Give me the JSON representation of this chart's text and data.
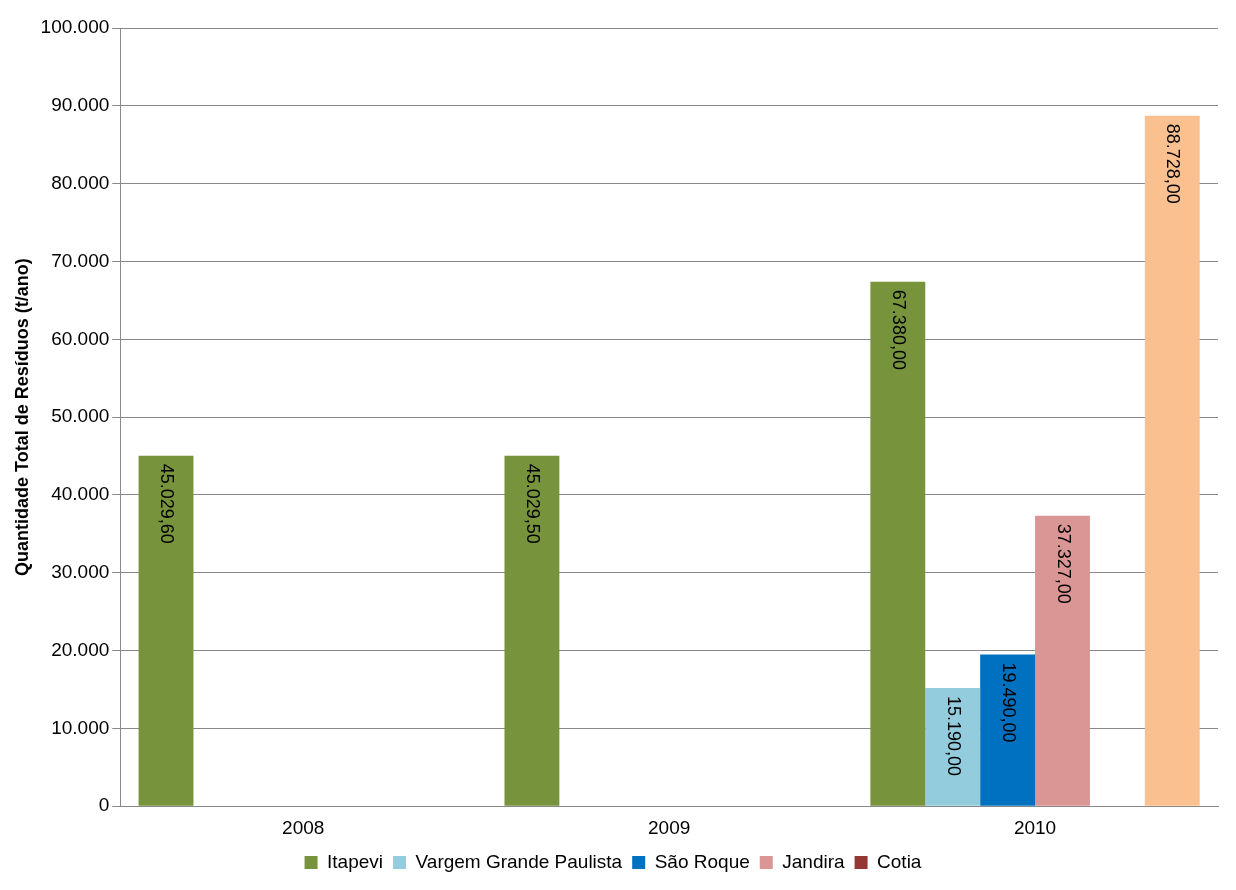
{
  "chart_data": {
    "type": "bar",
    "ylabel": "Quantidade Total de Resíduos (t/ano)",
    "categories": [
      "2008",
      "2009",
      "2010"
    ],
    "series": [
      {
        "name": "Itapevi",
        "color": "#77933c",
        "values": [
          45029.6,
          45029.5,
          67380
        ],
        "value_labels": [
          "45.029,60",
          "45.029,50",
          "67.380,00"
        ]
      },
      {
        "name": "Vargem Grande Paulista",
        "color": "#93cddd",
        "values": [
          null,
          null,
          15190
        ],
        "value_labels": [
          null,
          null,
          "15.190,00"
        ]
      },
      {
        "name": "São Roque",
        "color": "#0070c0",
        "values": [
          null,
          null,
          19490
        ],
        "value_labels": [
          null,
          null,
          "19.490,00"
        ]
      },
      {
        "name": "Jandira",
        "color": "#d99694",
        "values": [
          null,
          null,
          37327
        ],
        "value_labels": [
          null,
          null,
          "37.327,00"
        ]
      },
      {
        "name": "Cotia",
        "color": "#953735",
        "values": [
          null,
          null,
          null
        ]
      },
      {
        "color": "#fac090",
        "values": [
          null,
          null,
          88728
        ],
        "value_labels": [
          null,
          null,
          "88.728,00"
        ]
      }
    ],
    "ylim": [
      0,
      100000
    ],
    "yticks": [
      {
        "value": 0,
        "label": "0"
      },
      {
        "value": 10000,
        "label": "10.000"
      },
      {
        "value": 20000,
        "label": "20.000"
      },
      {
        "value": 30000,
        "label": "30.000"
      },
      {
        "value": 40000,
        "label": "40.000"
      },
      {
        "value": 50000,
        "label": "50.000"
      },
      {
        "value": 60000,
        "label": "60.000"
      },
      {
        "value": 70000,
        "label": "70.000"
      },
      {
        "value": 80000,
        "label": "80.000"
      },
      {
        "value": 90000,
        "label": "90.000"
      },
      {
        "value": 100000,
        "label": "100.000"
      }
    ],
    "grid": "y",
    "legend": "bottom"
  }
}
